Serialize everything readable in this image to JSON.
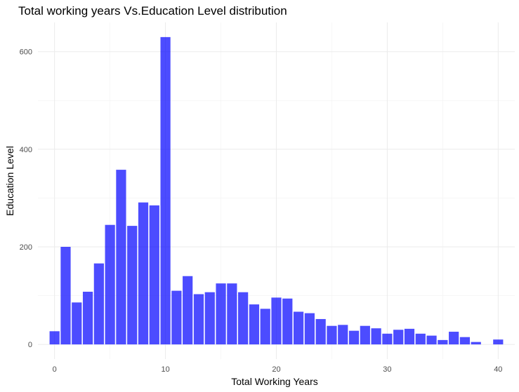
{
  "chart_data": {
    "type": "bar",
    "title": "Total working years Vs.Education Level distribution",
    "xlabel": "Total Working Years",
    "ylabel": "Education Level",
    "xlim": [
      -1.5,
      41.5
    ],
    "ylim": [
      -30,
      660
    ],
    "xticks": [
      0,
      10,
      20,
      30,
      40
    ],
    "yticks": [
      0,
      200,
      400,
      600
    ],
    "grid": true,
    "bar_color": "#0000ff",
    "bar_opacity": 0.7,
    "x": [
      0,
      1,
      2,
      3,
      4,
      5,
      6,
      7,
      8,
      9,
      10,
      11,
      12,
      13,
      14,
      15,
      16,
      17,
      18,
      19,
      20,
      21,
      22,
      23,
      24,
      25,
      26,
      27,
      28,
      29,
      30,
      31,
      32,
      33,
      34,
      35,
      36,
      37,
      38,
      40
    ],
    "values": [
      27,
      200,
      86,
      108,
      166,
      245,
      358,
      243,
      291,
      285,
      630,
      110,
      140,
      103,
      107,
      125,
      125,
      107,
      82,
      73,
      96,
      94,
      67,
      64,
      52,
      38,
      40,
      28,
      38,
      33,
      22,
      30,
      32,
      22,
      18,
      9,
      26,
      15,
      5,
      10
    ]
  }
}
